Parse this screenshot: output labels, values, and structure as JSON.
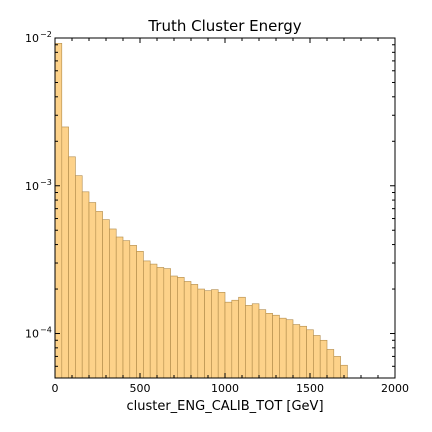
{
  "chart_data": {
    "type": "bar",
    "title": "Truth Cluster Energy",
    "xlabel": "cluster_ENG_CALIB_TOT [GeV]",
    "ylabel": "",
    "xlim": [
      0,
      2000
    ],
    "ylim": [
      5e-05,
      0.01
    ],
    "yscale": "log",
    "grid": false,
    "bin_width": 40,
    "bin_start": 0,
    "values": [
      0.0092,
      0.0025,
      0.00157,
      0.00117,
      0.00091,
      0.00077,
      0.00067,
      0.00059,
      0.00051,
      0.00045,
      0.000425,
      0.000395,
      0.00036,
      0.00031,
      0.000295,
      0.00028,
      0.000275,
      0.000245,
      0.00024,
      0.000225,
      0.000215,
      0.0002,
      0.000195,
      0.000198,
      0.00019,
      0.000163,
      0.000168,
      0.000176,
      0.000155,
      0.000159,
      0.000145,
      0.000137,
      0.000133,
      0.000127,
      0.000124,
      0.000115,
      0.000112,
      0.000106,
      9.7e-05,
      9e-05,
      7.8e-05,
      7e-05,
      6.1e-05
    ],
    "x_ticks": [
      {
        "value": 0,
        "label": "0"
      },
      {
        "value": 500,
        "label": "500"
      },
      {
        "value": 1000,
        "label": "1000"
      },
      {
        "value": 1500,
        "label": "1500"
      },
      {
        "value": 2000,
        "label": "2000"
      }
    ],
    "y_ticks": [
      {
        "value": 0.0001,
        "base": "10",
        "exp": "−4"
      },
      {
        "value": 0.001,
        "base": "10",
        "exp": "−3"
      },
      {
        "value": 0.01,
        "base": "10",
        "exp": "−2"
      }
    ],
    "colors": {
      "bar_fill": "#fdd28a",
      "bar_edge": "#b08a4a"
    }
  }
}
